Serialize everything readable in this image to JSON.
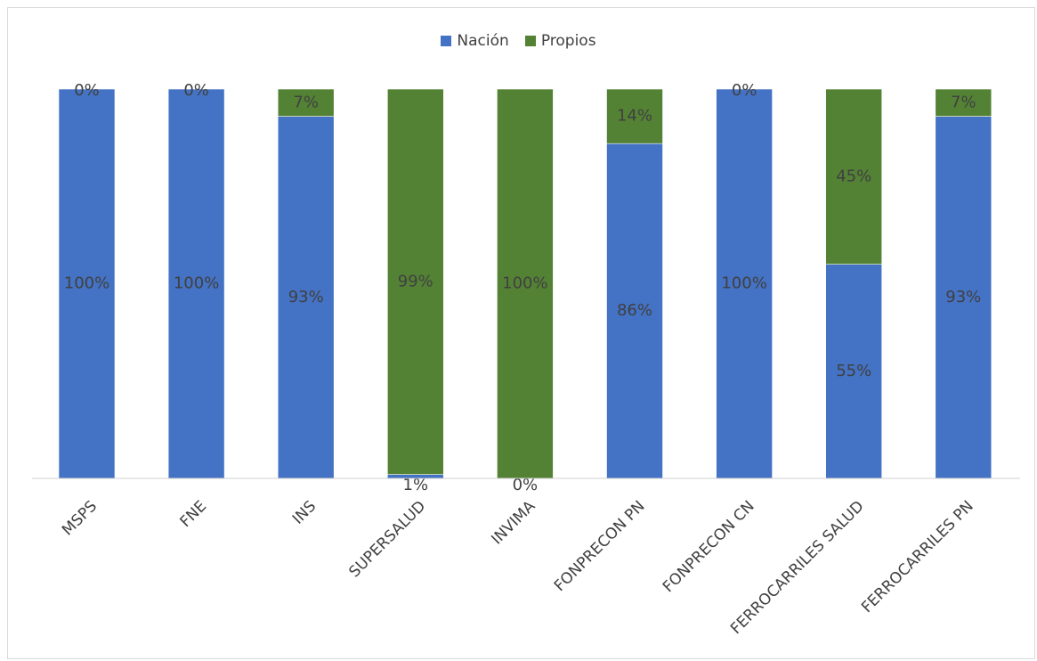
{
  "chart_data": {
    "type": "bar",
    "stacked": true,
    "percent": true,
    "categories": [
      "MSPS",
      "FNE",
      "INS",
      "SUPERSALUD",
      "INVIMA",
      "FONPRECON PN",
      "FONPRECON CN",
      "FERROCARRILES SALUD",
      "FERROCARRILES PN"
    ],
    "series": [
      {
        "name": "Nación",
        "color": "#4472C4",
        "values": [
          100,
          100,
          93,
          1,
          0,
          86,
          100,
          55,
          93
        ],
        "labels": [
          "100%",
          "100%",
          "93%",
          "1%",
          "0%",
          "86%",
          "100%",
          "55%",
          "93%"
        ]
      },
      {
        "name": "Propios",
        "color": "#548235",
        "values": [
          0,
          0,
          7,
          99,
          100,
          14,
          0,
          45,
          7
        ],
        "labels": [
          "0%",
          "0%",
          "7%",
          "99%",
          "100%",
          "14%",
          "0%",
          "45%",
          "7%"
        ]
      }
    ],
    "ylim": [
      0,
      100
    ],
    "grid": false,
    "legend": "top-center"
  }
}
